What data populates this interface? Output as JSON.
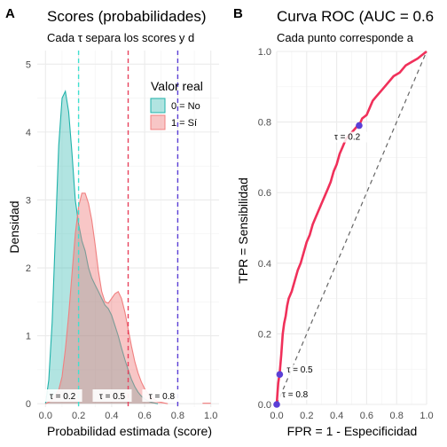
{
  "chart_data": [
    {
      "type": "area",
      "panel": "A",
      "title": "Scores (probabilidades)",
      "subtitle": "Cada τ separa los scores y d",
      "xlabel": "Probabilidad estimada (score)",
      "ylabel": "Densidad",
      "xlim": [
        -0.05,
        1.05
      ],
      "ylim": [
        -0.05,
        5.2
      ],
      "x_ticks": [
        "0.0",
        "0.2",
        "0.4",
        "0.6",
        "0.8",
        "1.0"
      ],
      "y_ticks": [
        "0",
        "1",
        "2",
        "3",
        "4",
        "5"
      ],
      "grid": true,
      "legend": {
        "title": "Valor real",
        "position": "top-right",
        "entries": [
          {
            "label": "0 = No",
            "color": "#20B2AA"
          },
          {
            "label": "1 = Sí",
            "color": "#F08080"
          }
        ]
      },
      "series": [
        {
          "name": "0 = No",
          "color": "#20B2AA",
          "x": [
            0.0,
            0.02,
            0.04,
            0.06,
            0.08,
            0.1,
            0.12,
            0.14,
            0.16,
            0.18,
            0.2,
            0.22,
            0.24,
            0.26,
            0.28,
            0.3,
            0.32,
            0.34,
            0.36,
            0.38,
            0.4,
            0.42,
            0.44,
            0.46,
            0.48,
            0.5,
            0.52,
            0.54,
            0.56,
            0.58,
            0.6,
            0.62,
            0.64,
            0.66,
            0.68
          ],
          "y": [
            0.0,
            0.35,
            1.2,
            2.5,
            3.8,
            4.5,
            4.6,
            4.3,
            3.7,
            3.0,
            2.65,
            2.4,
            2.25,
            2.0,
            1.85,
            1.75,
            1.65,
            1.55,
            1.45,
            1.4,
            1.3,
            1.15,
            1.0,
            0.82,
            0.65,
            0.5,
            0.36,
            0.25,
            0.17,
            0.11,
            0.07,
            0.04,
            0.02,
            0.01,
            0.0
          ]
        },
        {
          "name": "1 = Sí",
          "color": "#F08080",
          "x": [
            0.0,
            0.04,
            0.08,
            0.1,
            0.12,
            0.14,
            0.16,
            0.18,
            0.2,
            0.22,
            0.24,
            0.26,
            0.28,
            0.3,
            0.32,
            0.34,
            0.36,
            0.38,
            0.4,
            0.42,
            0.44,
            0.46,
            0.48,
            0.5,
            0.52,
            0.54,
            0.56,
            0.58,
            0.6,
            0.62,
            0.64,
            0.66,
            0.68,
            0.7,
            0.72,
            0.74
          ],
          "y": [
            0.0,
            0.05,
            0.2,
            0.4,
            0.8,
            1.3,
            1.9,
            2.5,
            2.9,
            3.1,
            3.1,
            2.95,
            2.7,
            2.35,
            1.95,
            1.65,
            1.5,
            1.48,
            1.55,
            1.62,
            1.65,
            1.55,
            1.35,
            1.1,
            0.85,
            0.62,
            0.45,
            0.32,
            0.22,
            0.15,
            0.1,
            0.06,
            0.03,
            0.02,
            0.01,
            0.0
          ]
        }
      ],
      "thresholds": [
        {
          "value": 0.2,
          "label": "τ = 0.2",
          "color": "#40E0D0"
        },
        {
          "value": 0.5,
          "label": "τ = 0.5",
          "color": "#E8435E"
        },
        {
          "value": 0.8,
          "label": "τ = 0.8",
          "color": "#5B3FD6"
        }
      ]
    },
    {
      "type": "line",
      "panel": "B",
      "title": "Curva ROC (AUC = 0.6",
      "subtitle": "Cada punto corresponde a",
      "xlabel": "FPR = 1 - Especificidad",
      "ylabel": "TPR = Sensibilidad",
      "xlim": [
        0,
        1
      ],
      "ylim": [
        0,
        1
      ],
      "x_ticks": [
        "0.0",
        "0.2",
        "0.4",
        "0.6",
        "0.8",
        "1.0"
      ],
      "y_ticks": [
        "0.0",
        "0.2",
        "0.4",
        "0.6",
        "0.8",
        "1.0"
      ],
      "grid": true,
      "roc_color": "#F0305A",
      "diagonal": {
        "from": [
          0,
          0
        ],
        "to": [
          1,
          1
        ],
        "style": "dashed"
      },
      "roc": {
        "x": [
          0.0,
          0.005,
          0.01,
          0.02,
          0.03,
          0.04,
          0.05,
          0.06,
          0.07,
          0.08,
          0.09,
          0.1,
          0.12,
          0.14,
          0.16,
          0.18,
          0.2,
          0.22,
          0.24,
          0.26,
          0.28,
          0.3,
          0.32,
          0.34,
          0.36,
          0.38,
          0.4,
          0.42,
          0.44,
          0.46,
          0.48,
          0.5,
          0.52,
          0.54,
          0.55,
          0.57,
          0.6,
          0.62,
          0.64,
          0.66,
          0.7,
          0.74,
          0.78,
          0.82,
          0.86,
          0.9,
          0.94,
          0.97,
          1.0
        ],
        "y": [
          0.0,
          0.03,
          0.06,
          0.09,
          0.14,
          0.2,
          0.23,
          0.25,
          0.28,
          0.3,
          0.31,
          0.32,
          0.35,
          0.38,
          0.4,
          0.43,
          0.46,
          0.48,
          0.51,
          0.53,
          0.55,
          0.57,
          0.59,
          0.61,
          0.63,
          0.66,
          0.68,
          0.71,
          0.73,
          0.75,
          0.76,
          0.77,
          0.78,
          0.79,
          0.79,
          0.81,
          0.82,
          0.84,
          0.86,
          0.87,
          0.89,
          0.91,
          0.93,
          0.94,
          0.96,
          0.97,
          0.98,
          0.99,
          1.0
        ]
      },
      "points": [
        {
          "label": "τ = 0.2",
          "fpr": 0.55,
          "tpr": 0.79,
          "color": "#5B3FD6"
        },
        {
          "label": "τ = 0.5",
          "fpr": 0.02,
          "tpr": 0.085,
          "color": "#5B3FD6"
        },
        {
          "label": "τ = 0.8",
          "fpr": 0.0,
          "tpr": 0.0,
          "color": "#5B3FD6"
        }
      ]
    }
  ],
  "panel_labels": {
    "a": "A",
    "b": "B"
  }
}
